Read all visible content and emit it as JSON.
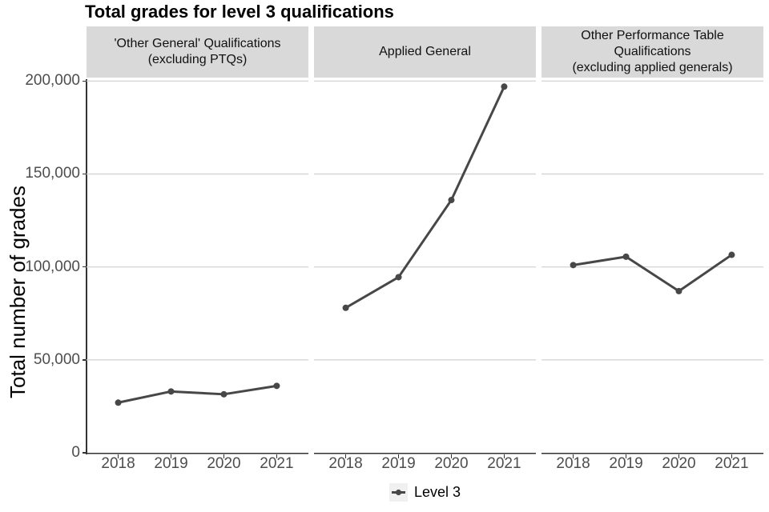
{
  "title": "Total grades for level 3 qualifications",
  "chart_data": {
    "type": "line",
    "title": "Total grades for level 3 qualifications",
    "xlabel": "",
    "ylabel": "Total number of grades",
    "ylim": [
      0,
      201000
    ],
    "yticks": [
      0,
      50000,
      100000,
      150000,
      200000
    ],
    "ytick_labels": [
      "0",
      "50,000",
      "100,000",
      "150,000",
      "200,000"
    ],
    "categories": [
      "2018",
      "2019",
      "2020",
      "2021"
    ],
    "grid": "horizontal-major",
    "series_name": "Level 3",
    "legend": {
      "position": "bottom",
      "label": "Level 3"
    },
    "facets": [
      {
        "label": "'Other General' Qualifications (excluding PTQs)",
        "label_lines": [
          "'Other General' Qualifications",
          "(excluding PTQs)"
        ],
        "values": [
          27000,
          33000,
          31500,
          36000
        ]
      },
      {
        "label": "Applied General",
        "label_lines": [
          "Applied General"
        ],
        "values": [
          78000,
          94500,
          136000,
          197000
        ]
      },
      {
        "label": "Other Performance Table Qualifications (excluding applied generals)",
        "label_lines": [
          "Other Performance Table",
          "Qualifications",
          "(excluding applied generals)"
        ],
        "values": [
          101000,
          105500,
          87000,
          106500
        ]
      }
    ],
    "colors": {
      "series": "#474747",
      "gridline": "#d6d6d6",
      "strip_bg": "#d9d9d9",
      "axis_line": "#333333",
      "tick_label": "#4d4d4d",
      "text": "#000000",
      "legend_key_bg": "#f0f0f0"
    }
  }
}
